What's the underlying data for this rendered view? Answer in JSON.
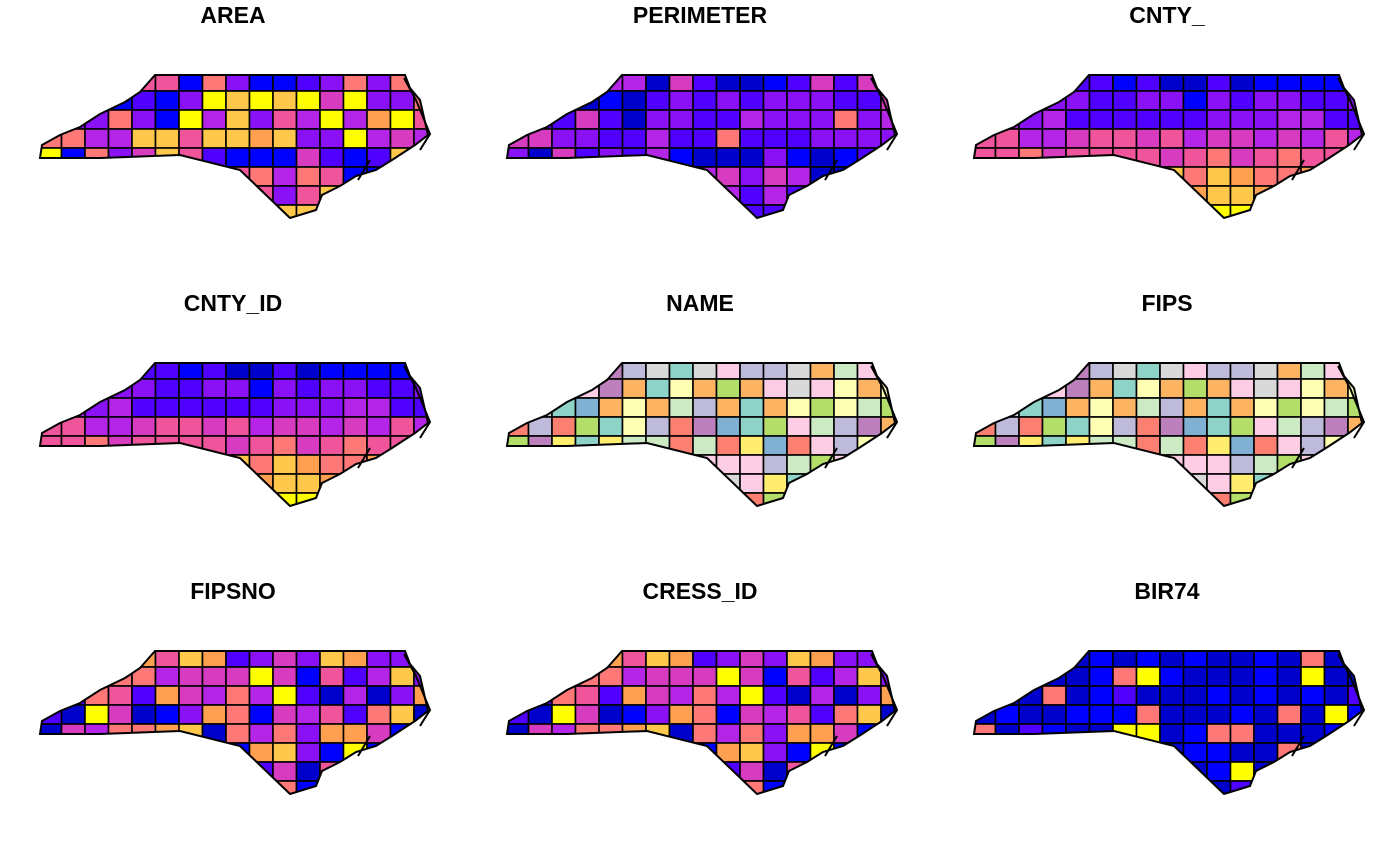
{
  "panels": [
    {
      "title": "AREA"
    },
    {
      "title": "PERIMETER"
    },
    {
      "title": "CNTY_"
    },
    {
      "title": "CNTY_ID"
    },
    {
      "title": "NAME"
    },
    {
      "title": "FIPS"
    },
    {
      "title": "FIPSNO"
    },
    {
      "title": "CRESS_ID"
    },
    {
      "title": "BIR74"
    }
  ]
}
